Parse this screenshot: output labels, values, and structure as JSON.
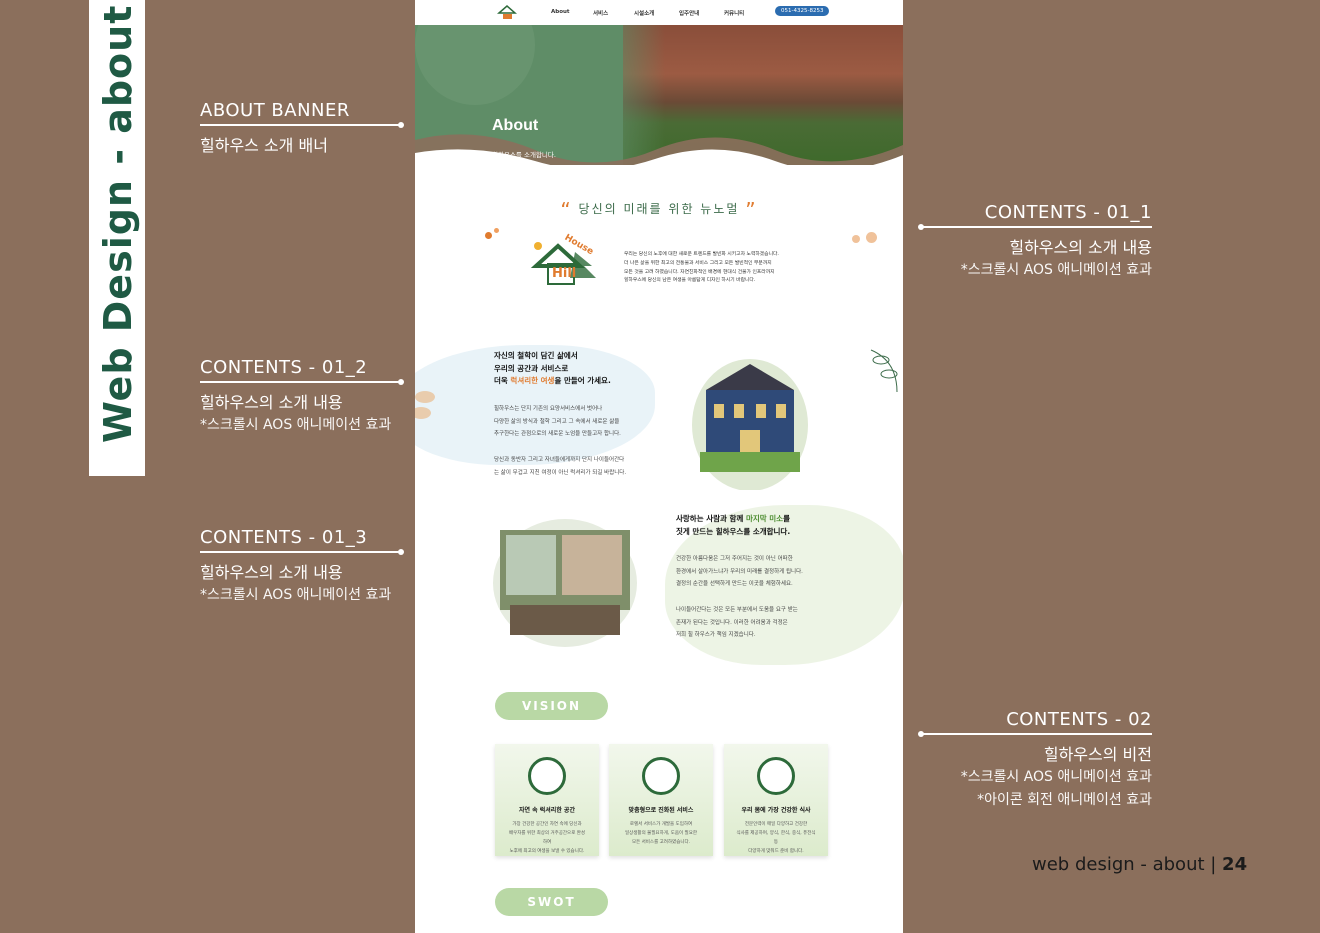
{
  "side_title": "Web Design - about",
  "annotations": {
    "banner": {
      "heading": "ABOUT BANNER",
      "text": "힐하우스 소개 배너"
    },
    "c01_1": {
      "heading": "CONTENTS - 01_1",
      "text": "힐하우스의 소개 내용",
      "sub": "*스크롤시 AOS 애니메이션 효과"
    },
    "c01_2": {
      "heading": "CONTENTS - 01_2",
      "text": "힐하우스의 소개 내용",
      "sub": "*스크롤시 AOS 애니메이션 효과"
    },
    "c01_3": {
      "heading": "CONTENTS - 01_3",
      "text": "힐하우스의 소개 내용",
      "sub": "*스크롤시 AOS 애니메이션 효과"
    },
    "c02": {
      "heading": "CONTENTS - 02",
      "text": "힐하우스의 비전",
      "sub1": "*스크롤시 AOS 애니메이션 효과",
      "sub2": "*아이콘 회전 애니메이션 효과"
    }
  },
  "footer": {
    "label": "web design - about | ",
    "page": "24"
  },
  "nav": {
    "items": [
      "About",
      "서비스",
      "시설소개",
      "입주안내",
      "커뮤니티"
    ],
    "phone": "051-4325-8253"
  },
  "banner": {
    "title": "About",
    "subtitle": "힐하우스를 소개합니다."
  },
  "quote": {
    "open": "“",
    "text": "당신의 미래를 위한 뉴노멀",
    "close": "”"
  },
  "intro": {
    "lines": [
      "우리는 당신의 노후에 대한 새로운 트렌드를 발빈화 시키고자 노력하겠습니다.",
      "더 나은 삶을 위한 최고의 전통물과 서비스 그리고 모든 발빈적인 부분까지",
      "모든 것을 고려 하였습니다. 자연친화적인 배경에 현대식 건물가 인프라까지",
      "힐하우스에 당신의 남은 여생을 아름답게 디자인 하시기 바랍니다."
    ]
  },
  "logo": {
    "top": "House",
    "bottom": "Hill"
  },
  "section1": {
    "heading1": "자신의 철학이 담긴 삶에서",
    "heading2": "우리의 공간과 서비스로",
    "heading3_pre": "더욱 ",
    "heading3_hl": "럭셔리한 여생",
    "heading3_post": "을 만들어 가세요.",
    "p1": [
      "힐하우스는 단지 기존의 요양서비스에서 벗어나",
      "다양한 삶의 방식과 철학 그리고 그 속에서 새로운 삶을",
      "추구한다는 관점으로의 새로운 노엄을 만들고자 합니다."
    ],
    "p2": [
      "당신과 동반자 그리고 자녀들에게까지 단지 나이들어간다",
      "는 삶이 무겁고 지친 여정이 아닌 럭셔리가 되길 바랍니다."
    ]
  },
  "section2": {
    "heading1_pre": "사랑하는 사람과 함께 ",
    "heading1_hl": "마지막 미소",
    "heading1_post": "를",
    "heading2": "짓게 만드는 힐하우스를 소개합니다.",
    "p1": [
      "건강한 아름다움은 그저 주어지는 것이 아닌 어떠한",
      "환경에서 살아가느냐가 우리의 미래를 결정하게 됩니다.",
      "결정의 순간을 선택하게 만드는 이곳을 체험하세요."
    ],
    "p2": [
      "나이들어간다는 것은 모든 부분에서 도움을 요구 받는",
      "존재가 된다는 것입니다.  이러한 어려움과 걱정은",
      "저희 힐 하우스가 책임 지겠습니다."
    ]
  },
  "vision_label": "VISION",
  "swot_label": "SWOT",
  "cards": [
    {
      "title": "자연 속 럭셔리한 공간",
      "desc": [
        "가장 건강한 공간인 자연 속에 당신과",
        "배우자를 위한 최상의 거주공간으로 완성하여",
        "노후에 최고의 여생을 보낼 수 있습니다."
      ]
    },
    {
      "title": "맞춤형으로 진화된 서비스",
      "desc": [
        "로렐서 서비스가 개발을 도입하여",
        "일상생활의 불필요하게, 도움이 필요한",
        "모든 서비스를 고려하였습니다."
      ]
    },
    {
      "title": "우리 몸에 가장 건강한 식사",
      "desc": [
        "전문인력이 매일 다양하고 건강한",
        "식사를 제공하며, 양식, 한식, 중식, 퓨전식 등",
        "다양하게 맞춰드 준비 합니다."
      ]
    }
  ],
  "colors": {
    "background": "#8b6f5c",
    "brand_green": "#1f5a44",
    "accent_orange": "#e07b2f",
    "banner_green": "#5f8d67"
  }
}
